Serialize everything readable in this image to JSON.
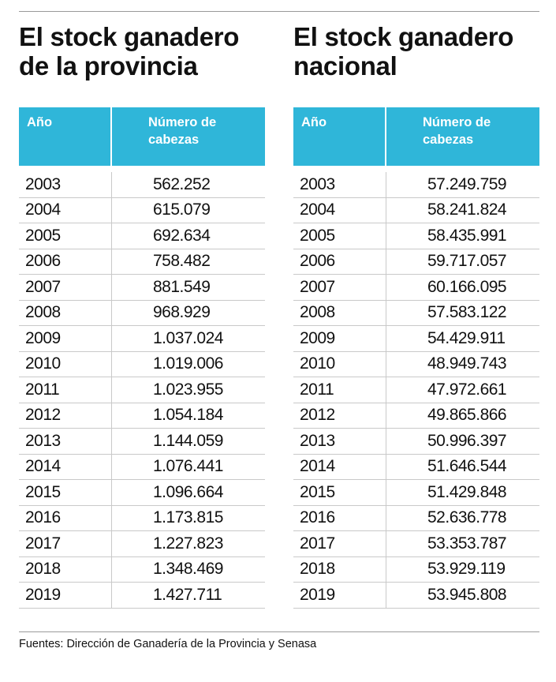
{
  "left": {
    "title": "El stock ganadero de la provincia",
    "col_year": "Año",
    "col_count": "Número de cabezas",
    "rows": [
      {
        "year": "2003",
        "count": "562.252"
      },
      {
        "year": "2004",
        "count": "615.079"
      },
      {
        "year": "2005",
        "count": "692.634"
      },
      {
        "year": "2006",
        "count": "758.482"
      },
      {
        "year": "2007",
        "count": "881.549"
      },
      {
        "year": "2008",
        "count": "968.929"
      },
      {
        "year": "2009",
        "count": "1.037.024"
      },
      {
        "year": "2010",
        "count": "1.019.006"
      },
      {
        "year": "2011",
        "count": "1.023.955"
      },
      {
        "year": "2012",
        "count": "1.054.184"
      },
      {
        "year": "2013",
        "count": "1.144.059"
      },
      {
        "year": "2014",
        "count": "1.076.441"
      },
      {
        "year": "2015",
        "count": "1.096.664"
      },
      {
        "year": "2016",
        "count": "1.173.815"
      },
      {
        "year": "2017",
        "count": "1.227.823"
      },
      {
        "year": "2018",
        "count": "1.348.469"
      },
      {
        "year": "2019",
        "count": "1.427.711"
      }
    ]
  },
  "right": {
    "title": "El stock ganadero nacional",
    "col_year": "Año",
    "col_count": "Número de cabezas",
    "rows": [
      {
        "year": "2003",
        "count": "57.249.759"
      },
      {
        "year": "2004",
        "count": "58.241.824"
      },
      {
        "year": "2005",
        "count": "58.435.991"
      },
      {
        "year": "2006",
        "count": "59.717.057"
      },
      {
        "year": "2007",
        "count": "60.166.095"
      },
      {
        "year": "2008",
        "count": "57.583.122"
      },
      {
        "year": "2009",
        "count": "54.429.911"
      },
      {
        "year": "2010",
        "count": "48.949.743"
      },
      {
        "year": "2011",
        "count": "47.972.661"
      },
      {
        "year": "2012",
        "count": "49.865.866"
      },
      {
        "year": "2013",
        "count": "50.996.397"
      },
      {
        "year": "2014",
        "count": "51.646.544"
      },
      {
        "year": "2015",
        "count": "51.429.848"
      },
      {
        "year": "2016",
        "count": "52.636.778"
      },
      {
        "year": "2017",
        "count": "53.353.787"
      },
      {
        "year": "2018",
        "count": "53.929.119"
      },
      {
        "year": "2019",
        "count": "53.945.808"
      }
    ]
  },
  "source": "Fuentes: Dirección de Ganadería de la Provincia y Senasa",
  "colors": {
    "header_bg": "#2fb6d9",
    "header_text": "#ffffff"
  }
}
